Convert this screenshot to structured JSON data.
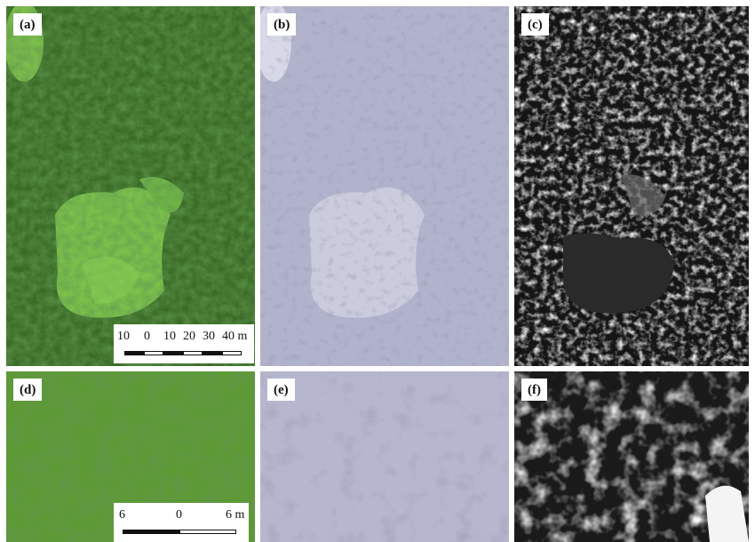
{
  "panels": {
    "a": {
      "label": "(a)"
    },
    "b": {
      "label": "(b)"
    },
    "c": {
      "label": "(c)"
    },
    "d": {
      "label": "(d)"
    },
    "e": {
      "label": "(e)"
    },
    "f": {
      "label": "(f)"
    }
  },
  "scalebar_a": {
    "ticks": [
      "10",
      "0",
      "10",
      "20",
      "30",
      "40 m"
    ]
  },
  "scalebar_d": {
    "ticks": [
      "6",
      "0",
      "6 m"
    ]
  },
  "colors": {
    "forest_rgb": "#2f5a1e",
    "meadow": "#7cc24a",
    "multispectral": "#a7a8c4",
    "grayscale_bg": "#202020"
  }
}
